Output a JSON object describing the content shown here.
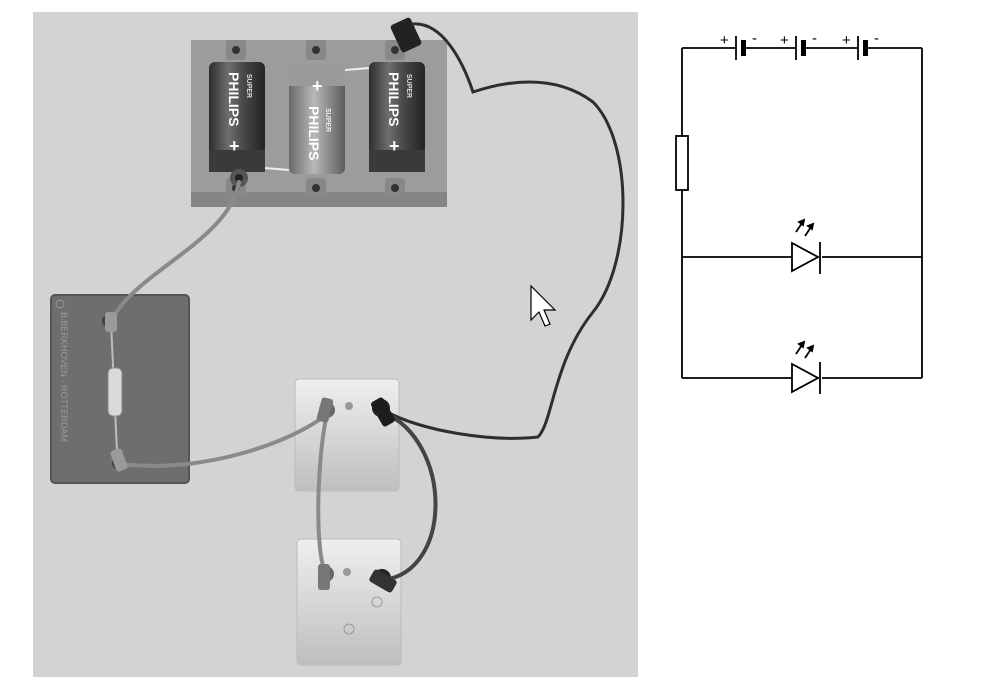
{
  "photo": {
    "battery_holder": {
      "cells": [
        {
          "brand": "PHILIPS",
          "series": "SUPER",
          "terminal_mark": "+"
        },
        {
          "brand": "PHILIPS",
          "series": "SUPER",
          "terminal_mark": "+"
        },
        {
          "brand": "PHILIPS",
          "series": "SUPER",
          "terminal_mark": "+"
        }
      ]
    },
    "resistor_board": {
      "manufacturer_text": "B.BERKHOVEN - ROTTERDAM"
    }
  },
  "schematic": {
    "battery_symbols": [
      {
        "plus": "+",
        "minus": "-"
      },
      {
        "plus": "+",
        "minus": "-"
      },
      {
        "plus": "+",
        "minus": "-"
      }
    ]
  },
  "colors": {
    "photo_background": "#d3d3d3",
    "wire": "#3a3a3a",
    "schematic_line": "#000000"
  }
}
